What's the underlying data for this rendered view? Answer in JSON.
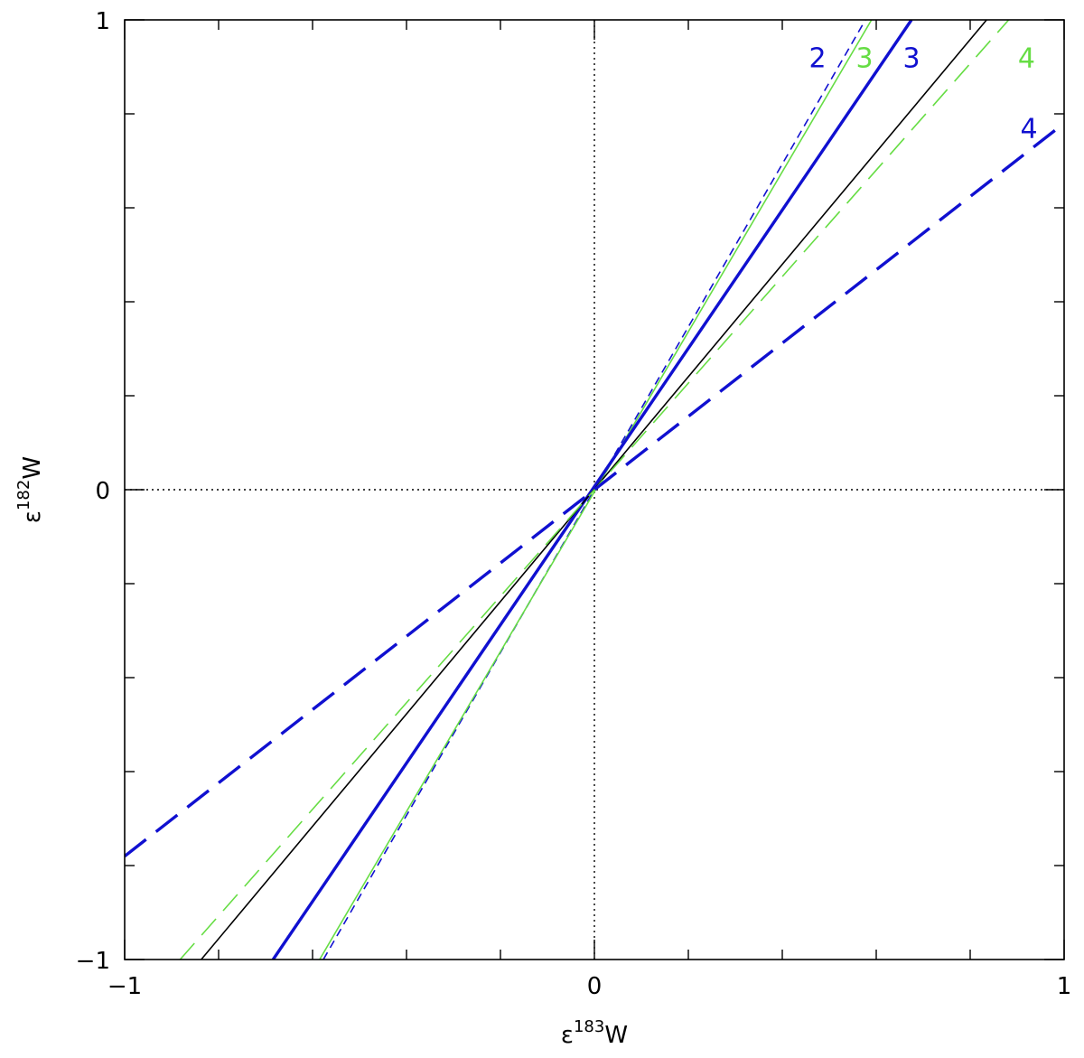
{
  "chart_data": {
    "type": "line",
    "title": "",
    "xlabel": {
      "base": "ε",
      "sup": "183",
      "tail": "W"
    },
    "ylabel": {
      "base": "ε",
      "sup": "182",
      "tail": "W"
    },
    "xlim": [
      -1,
      1
    ],
    "ylim": [
      -1,
      1
    ],
    "xticks": [
      -1,
      0,
      1
    ],
    "yticks": [
      -1,
      0,
      1
    ],
    "xtick_labels": [
      "−1",
      "0",
      "1"
    ],
    "ytick_labels": [
      "−1",
      "0",
      "1"
    ],
    "minor_tick_step": 0.2,
    "reference_lines": [
      {
        "orientation": "vertical",
        "value": 0,
        "style": "dotted",
        "color": "#000000"
      },
      {
        "orientation": "horizontal",
        "value": 0,
        "style": "dotted",
        "color": "#000000"
      }
    ],
    "series": [
      {
        "label": "2",
        "color": "#1010d0",
        "dash": "short",
        "width": "thin",
        "x": [
          -0.577,
          0.577
        ],
        "y": [
          -1,
          1
        ]
      },
      {
        "label": "3",
        "color": "#66dd44",
        "dash": "solid",
        "width": "thin",
        "x": [
          -0.585,
          0.59
        ],
        "y": [
          -1,
          1
        ]
      },
      {
        "label": "3",
        "color": "#1010d0",
        "dash": "solid",
        "width": "thick",
        "x": [
          -0.684,
          0.675
        ],
        "y": [
          -1,
          1
        ]
      },
      {
        "label": "",
        "color": "#000000",
        "dash": "solid",
        "width": "thin",
        "x": [
          -0.837,
          0.835
        ],
        "y": [
          -1,
          1
        ]
      },
      {
        "label": "4",
        "color": "#66dd44",
        "dash": "long",
        "width": "thin",
        "x": [
          -0.882,
          0.882
        ],
        "y": [
          -1,
          1
        ]
      },
      {
        "label": "4",
        "color": "#1010d0",
        "dash": "long",
        "width": "thick",
        "x": [
          -1,
          1
        ],
        "y": [
          -0.78,
          0.78
        ]
      }
    ],
    "curve_labels": [
      {
        "text": "2",
        "color": "#1010d0",
        "x": 0.475,
        "y": 0.92
      },
      {
        "text": "3",
        "color": "#66dd44",
        "x": 0.575,
        "y": 0.92
      },
      {
        "text": "3",
        "color": "#1010d0",
        "x": 0.675,
        "y": 0.92
      },
      {
        "text": "4",
        "color": "#66dd44",
        "x": 0.92,
        "y": 0.92
      },
      {
        "text": "4",
        "color": "#1010d0",
        "x": 0.925,
        "y": 0.77
      }
    ]
  }
}
